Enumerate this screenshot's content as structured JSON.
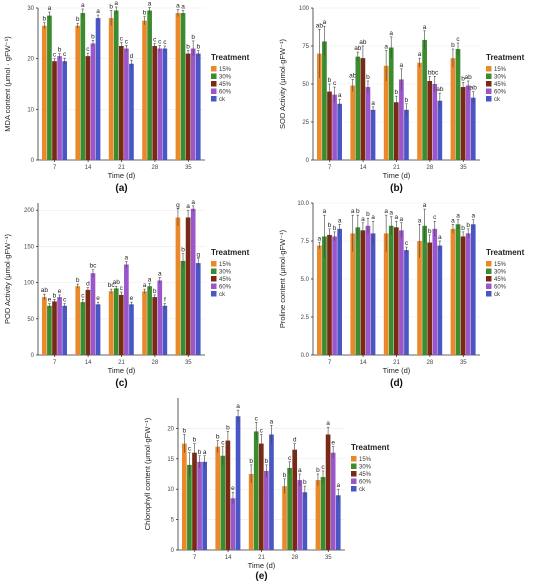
{
  "colors": {
    "15%": "#e9892c",
    "30%": "#3a8c2e",
    "45%": "#7a2a14",
    "60%": "#cf2e2e",
    "80%": "#9b57c9",
    "ck": "#4a56c4"
  },
  "chart_data": [
    {
      "type": "bar",
      "tag": "(a)",
      "xlabel": "Time (d)",
      "ylabel": "MDA content (μmol · gFW⁻¹)",
      "ylim": [
        0,
        30
      ],
      "yticks": [
        0,
        10,
        20,
        30
      ],
      "categories": [
        "7",
        "14",
        "21",
        "28",
        "35"
      ],
      "legend_title": "Treatment",
      "legend": [
        "15%",
        "30%",
        "45%",
        "60%",
        "ck"
      ],
      "series": [
        {
          "name": "15%",
          "color_key": "15%",
          "values": [
            26.5,
            26.5,
            28,
            27.5,
            29
          ],
          "errors": [
            0.6,
            0.5,
            1.5,
            0.8,
            0.7
          ],
          "letters": [
            "b",
            "b",
            "b",
            "b",
            "a"
          ]
        },
        {
          "name": "30%",
          "color_key": "30%",
          "values": [
            28.5,
            29,
            29.5,
            29.5,
            29
          ],
          "errors": [
            0.7,
            0.8,
            0.7,
            0.6,
            0.5
          ],
          "letters": [
            "a",
            "a",
            "a",
            "a",
            "a"
          ]
        },
        {
          "name": "45%",
          "color_key": "45%",
          "values": [
            19.5,
            20.5,
            22.5,
            22.5,
            21
          ],
          "errors": [
            0.5,
            0.6,
            0.7,
            0.5,
            0.6
          ],
          "letters": [
            "c",
            "c",
            "c",
            "c",
            "b"
          ]
        },
        {
          "name": "60%",
          "color_key": "80%",
          "values": [
            20.5,
            23,
            22,
            22,
            22
          ],
          "errors": [
            0.5,
            0.6,
            0.6,
            0.6,
            1.5
          ],
          "letters": [
            "b",
            "b",
            "c",
            "c",
            "b"
          ]
        },
        {
          "name": "ck",
          "color_key": "ck",
          "values": [
            19.5,
            28,
            19,
            22,
            21
          ],
          "errors": [
            0.6,
            0.6,
            0.7,
            0.5,
            0.6
          ],
          "letters": [
            "c",
            "a",
            "d",
            "c",
            "b"
          ]
        }
      ]
    },
    {
      "type": "bar",
      "tag": "(b)",
      "xlabel": "Time (d)",
      "ylabel": "SOD Activity (μmol·gFW⁻¹)",
      "ylim": [
        0,
        100
      ],
      "yticks": [
        0,
        25,
        50,
        75,
        100
      ],
      "categories": [
        "7",
        "14",
        "21",
        "28",
        "35"
      ],
      "legend_title": "Treatment",
      "legend": [
        "15%",
        "30%",
        "45%",
        "60%",
        "ck"
      ],
      "series": [
        {
          "name": "15%",
          "color_key": "15%",
          "values": [
            70,
            49,
            62,
            64,
            67
          ],
          "errors": [
            16,
            4,
            10,
            3,
            6
          ],
          "letters": [
            "ab",
            "ab",
            "a",
            "a",
            "b"
          ]
        },
        {
          "name": "30%",
          "color_key": "30%",
          "values": [
            78,
            68,
            74,
            79,
            73
          ],
          "errors": [
            10,
            3,
            7,
            6,
            4
          ],
          "letters": [
            "a",
            "ab",
            "a",
            "a",
            "c"
          ]
        },
        {
          "name": "45%",
          "color_key": "45%",
          "values": [
            45,
            67,
            38,
            52,
            48
          ],
          "errors": [
            5,
            8,
            4,
            3,
            3
          ],
          "letters": [
            "b",
            "ab",
            "b",
            "b",
            "b"
          ]
        },
        {
          "name": "60%",
          "color_key": "80%",
          "values": [
            43,
            48,
            53,
            50,
            49
          ],
          "errors": [
            5,
            4,
            7,
            5,
            3
          ],
          "letters": [
            "c",
            "b",
            "a",
            "bc",
            "ab"
          ]
        },
        {
          "name": "ck",
          "color_key": "ck",
          "values": [
            37,
            33,
            33,
            39,
            41
          ],
          "errors": [
            3,
            2,
            4,
            5,
            4
          ],
          "letters": [
            "a",
            "a",
            "b",
            "ab",
            "ab"
          ]
        }
      ]
    },
    {
      "type": "bar",
      "tag": "(c)",
      "xlabel": "Time (d)",
      "ylabel": "POD Activity (μmol·gFW⁻¹)",
      "ylim": [
        0,
        210
      ],
      "yticks": [
        0,
        50,
        100,
        150,
        200
      ],
      "categories": [
        "7",
        "14",
        "21",
        "28",
        "35"
      ],
      "legend_title": "Treatment",
      "legend": [
        "15%",
        "30%",
        "45%",
        "60%",
        "ck"
      ],
      "series": [
        {
          "name": "15%",
          "color_key": "15%",
          "values": [
            80,
            95,
            88,
            88,
            190
          ],
          "errors": [
            4,
            3,
            3,
            3,
            12
          ],
          "letters": [
            "ab",
            "b",
            "bc",
            "a",
            "g"
          ]
        },
        {
          "name": "30%",
          "color_key": "30%",
          "values": [
            68,
            73,
            92,
            95,
            130
          ],
          "errors": [
            3,
            4,
            3,
            4,
            10
          ],
          "letters": [
            "e",
            "c",
            "ab",
            "a",
            "b"
          ]
        },
        {
          "name": "45%",
          "color_key": "45%",
          "values": [
            74,
            90,
            83,
            80,
            190
          ],
          "errors": [
            3,
            3,
            4,
            3,
            10
          ],
          "letters": [
            "b",
            "d",
            "c",
            "b",
            "a"
          ]
        },
        {
          "name": "60%",
          "color_key": "80%",
          "values": [
            80,
            113,
            125,
            103,
            202
          ],
          "errors": [
            3,
            5,
            4,
            4,
            4
          ],
          "letters": [
            "e",
            "bc",
            "a",
            "a",
            "a"
          ]
        },
        {
          "name": "ck",
          "color_key": "ck",
          "values": [
            68,
            70,
            70,
            68,
            127
          ],
          "errors": [
            3,
            3,
            3,
            3,
            6
          ],
          "letters": [
            "c",
            "e",
            "e",
            "f",
            "g"
          ]
        }
      ]
    },
    {
      "type": "bar",
      "tag": "(d)",
      "xlabel": "Time (d)",
      "ylabel": "Proline content (μmol·gFW⁻¹)",
      "ylim": [
        0,
        10
      ],
      "yticks": [
        0.0,
        2.5,
        5.0,
        7.5,
        10.0
      ],
      "categories": [
        "7",
        "14",
        "21",
        "28",
        "35"
      ],
      "legend_title": "Treatment",
      "legend": [
        "15%",
        "30%",
        "45%",
        "60%",
        "ck"
      ],
      "series": [
        {
          "name": "15%",
          "color_key": "15%",
          "values": [
            7.2,
            8.0,
            8.0,
            7.5,
            8.3
          ],
          "errors": [
            0.2,
            1.2,
            1.2,
            1.1,
            0.3
          ],
          "letters": [
            "a",
            "a",
            "a",
            "a",
            "a"
          ]
        },
        {
          "name": "30%",
          "color_key": "30%",
          "values": [
            7.8,
            8.4,
            8.5,
            8.5,
            8.6
          ],
          "errors": [
            1.4,
            0.8,
            0.6,
            1.1,
            0.3
          ],
          "letters": [
            "a",
            "b",
            "a",
            "a",
            "a"
          ]
        },
        {
          "name": "45%",
          "color_key": "45%",
          "values": [
            7.9,
            8.2,
            8.4,
            7.4,
            7.8
          ],
          "errors": [
            0.4,
            0.5,
            0.4,
            0.5,
            0.3
          ],
          "letters": [
            "b",
            "a",
            "a",
            "b",
            "b"
          ]
        },
        {
          "name": "60%",
          "color_key": "80%",
          "values": [
            7.8,
            8.5,
            8.2,
            8.3,
            8.0
          ],
          "errors": [
            0.3,
            0.5,
            0.5,
            0.5,
            0.3
          ],
          "letters": [
            "b",
            "b",
            "a",
            "c",
            "b"
          ]
        },
        {
          "name": "ck",
          "color_key": "ck",
          "values": [
            8.3,
            8.0,
            6.9,
            7.2,
            8.6
          ],
          "errors": [
            0.3,
            0.8,
            0.2,
            0.3,
            0.3
          ],
          "letters": [
            "a",
            "a",
            "c",
            "a",
            "a"
          ]
        }
      ]
    },
    {
      "type": "bar",
      "tag": "(e)",
      "xlabel": "Time (d)",
      "ylabel": "Chlorophyll content (μmol·gFW⁻¹)",
      "ylim": [
        0,
        25
      ],
      "yticks": [
        0,
        5,
        10,
        15,
        20
      ],
      "categories": [
        "7",
        "14",
        "21",
        "28",
        "35"
      ],
      "legend_title": "Treatment",
      "legend": [
        "15%",
        "30%",
        "45%",
        "60%",
        "ck"
      ],
      "series": [
        {
          "name": "15%",
          "color_key": "15%",
          "values": [
            17.5,
            17,
            12.5,
            10.5,
            11.5
          ],
          "errors": [
            1.5,
            1.0,
            1.5,
            1.2,
            1.0
          ],
          "letters": [
            "b",
            "b",
            "b",
            "b",
            "b"
          ]
        },
        {
          "name": "30%",
          "color_key": "30%",
          "values": [
            14,
            15.5,
            19.5,
            13.5,
            12
          ],
          "errors": [
            2.0,
            1.5,
            1.5,
            1.0,
            1.0
          ],
          "letters": [
            "c",
            "c",
            "c",
            "c",
            "c"
          ]
        },
        {
          "name": "45%",
          "color_key": "45%",
          "values": [
            16,
            18,
            17.5,
            16.5,
            19
          ],
          "errors": [
            1.5,
            1.5,
            1.5,
            1.0,
            1.2
          ],
          "letters": [
            "b",
            "b",
            "c",
            "d",
            "a"
          ]
        },
        {
          "name": "60%",
          "color_key": "80%",
          "values": [
            14.5,
            8.5,
            13,
            11.5,
            16
          ],
          "errors": [
            1.0,
            1.0,
            1.0,
            1.0,
            1.0
          ],
          "letters": [
            "b",
            "e",
            "b",
            "a",
            "e"
          ]
        },
        {
          "name": "ck",
          "color_key": "ck",
          "values": [
            14.5,
            22,
            19,
            9.5,
            9
          ],
          "errors": [
            1.0,
            1.0,
            1.5,
            1.0,
            1.0
          ],
          "letters": [
            "a",
            "a",
            "a",
            "b",
            "a"
          ]
        }
      ]
    }
  ]
}
